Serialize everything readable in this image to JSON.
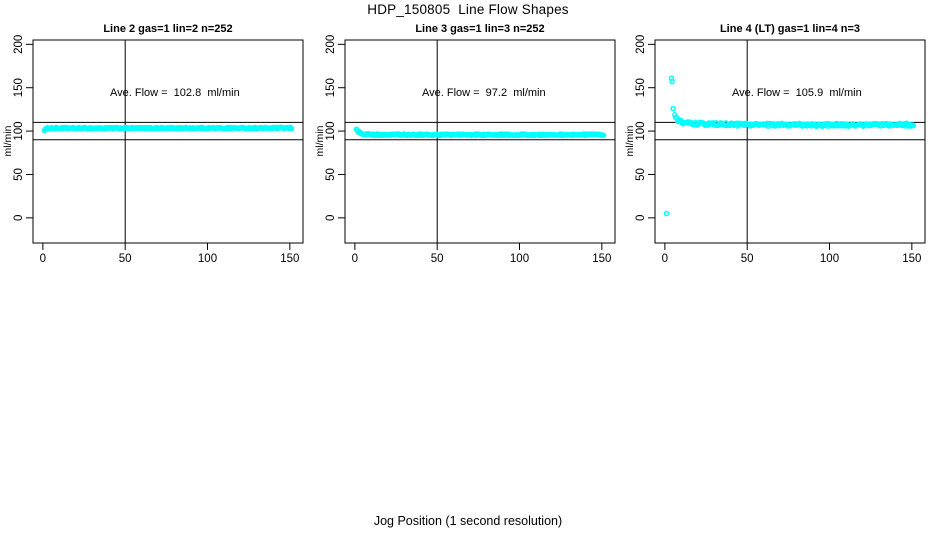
{
  "title": "HDP_150805  Line Flow Shapes",
  "xlabel": "Jog Position (1 second resolution)",
  "point_color": "#00FFFF",
  "axis_color": "#000000",
  "chart_data": [
    {
      "type": "scatter",
      "title": "Line 2 gas=1 lin=2 n=252",
      "ylabel": "ml/min",
      "annotation": "Ave. Flow =  102.8  ml/min",
      "ave_flow_ml_min": 102.8,
      "n_label": 252,
      "x_ticks": [
        0,
        50,
        100,
        150
      ],
      "y_ticks": [
        0,
        50,
        100,
        150,
        200
      ],
      "xlim": [
        -6,
        158
      ],
      "ylim": [
        -29,
        205
      ],
      "grid": false,
      "hlines": [
        90,
        110
      ],
      "vline": 50,
      "points_rendered": 252,
      "x_range": [
        1,
        151
      ],
      "profile": [
        [
          1,
          101.5
        ],
        [
          3,
          103.3
        ],
        [
          151,
          103.5
        ]
      ],
      "noise": 0.8,
      "outliers": [],
      "point_color": "#00FFFF"
    },
    {
      "type": "scatter",
      "title": "Line 3 gas=1 lin=3 n=252",
      "ylabel": "ml/min",
      "annotation": "Ave. Flow =  97.2  ml/min",
      "ave_flow_ml_min": 97.2,
      "n_label": 252,
      "x_ticks": [
        0,
        50,
        100,
        150
      ],
      "y_ticks": [
        0,
        50,
        100,
        150,
        200
      ],
      "xlim": [
        -6,
        158
      ],
      "ylim": [
        -29,
        205
      ],
      "grid": false,
      "hlines": [
        90,
        110
      ],
      "vline": 50,
      "points_rendered": 252,
      "x_range": [
        1,
        151
      ],
      "profile": [
        [
          1,
          102
        ],
        [
          2,
          99.5
        ],
        [
          5,
          96.5
        ],
        [
          10,
          95.8
        ],
        [
          151,
          95.8
        ]
      ],
      "noise": 0.9,
      "outliers": [],
      "point_color": "#00FFFF"
    },
    {
      "type": "scatter",
      "title": "Line 4 (LT) gas=1 lin=4 n=3",
      "ylabel": "ml/min",
      "annotation": "Ave. Flow =  105.9  ml/min",
      "ave_flow_ml_min": 105.9,
      "n_label": 3,
      "x_ticks": [
        0,
        50,
        100,
        150
      ],
      "y_ticks": [
        0,
        50,
        100,
        150,
        200
      ],
      "xlim": [
        -6,
        158
      ],
      "ylim": [
        -29,
        205
      ],
      "grid": false,
      "hlines": [
        90,
        110
      ],
      "vline": 50,
      "points_rendered": 244,
      "x_range": [
        6,
        151
      ],
      "profile": [
        [
          6,
          118
        ],
        [
          8,
          112
        ],
        [
          12,
          109.5
        ],
        [
          25,
          108
        ],
        [
          60,
          107.2
        ],
        [
          151,
          107.3
        ]
      ],
      "noise": 1.7,
      "outliers": [
        [
          1,
          5
        ],
        [
          4,
          161
        ],
        [
          4.4,
          157
        ],
        [
          5,
          126
        ]
      ],
      "point_color": "#00FFFF"
    }
  ]
}
